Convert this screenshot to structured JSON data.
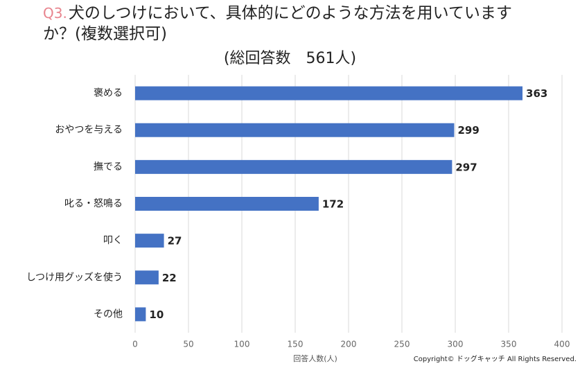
{
  "chart_data": {
    "type": "bar",
    "orientation": "horizontal",
    "title_prefix": "Q3.",
    "title": "犬のしつけにおいて、具体的にどのような方法を用いていますか？(複数選択可)",
    "subtitle": "(総回答数　561人)",
    "categories": [
      "褒める",
      "おやつを与える",
      "撫でる",
      "叱る・怒鳴る",
      "叩く",
      "しつけ用グッズを使う",
      "その他"
    ],
    "values": [
      363,
      299,
      297,
      172,
      27,
      22,
      10
    ],
    "color": "#4472c4",
    "xlim": [
      0,
      400
    ],
    "xticks": [
      0,
      50,
      100,
      150,
      200,
      250,
      300,
      350,
      400
    ],
    "xlabel": "回答人数(人)",
    "grid": true,
    "footer": "Copyright© ドッグキャッチ All Rights Reserved."
  }
}
